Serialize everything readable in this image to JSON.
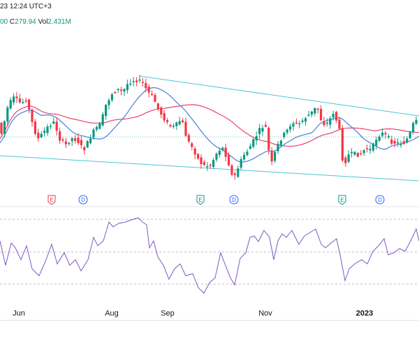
{
  "header": {
    "line1": "23 12:24 UTC+3",
    "close_fragment": "00",
    "change_label": "C",
    "change_value": "279.94",
    "vol_label": "Vol",
    "vol_value": "2.431M"
  },
  "colors": {
    "up": "#089981",
    "down": "#f23645",
    "ma_fast": "#4a7fd6",
    "ma_slow": "#e8436b",
    "channel": "#4dc5d6",
    "rsi": "#7e57c2",
    "grid": "#9aa0a6"
  },
  "events": [
    {
      "kind": "E",
      "color": "#f23645"
    },
    {
      "kind": "D",
      "color": "#2962ff"
    },
    {
      "kind": "E",
      "color": "#089981"
    },
    {
      "kind": "D",
      "color": "#2962ff"
    },
    {
      "kind": "E",
      "color": "#089981"
    },
    {
      "kind": "D",
      "color": "#2962ff"
    }
  ],
  "chart_data": [
    {
      "type": "candlestick",
      "x_labels": [
        "Jun",
        "Aug",
        "Sep",
        "Nov",
        "2023"
      ],
      "bold_x_labels": [
        "2023"
      ],
      "series": [
        {
          "kind": "price"
        },
        {
          "kind": "moving_average_fast"
        },
        {
          "kind": "moving_average_slow"
        },
        {
          "kind": "descending_channel"
        }
      ]
    },
    {
      "type": "line",
      "indicator": "RSI",
      "levels": [
        70,
        50,
        30
      ]
    }
  ]
}
